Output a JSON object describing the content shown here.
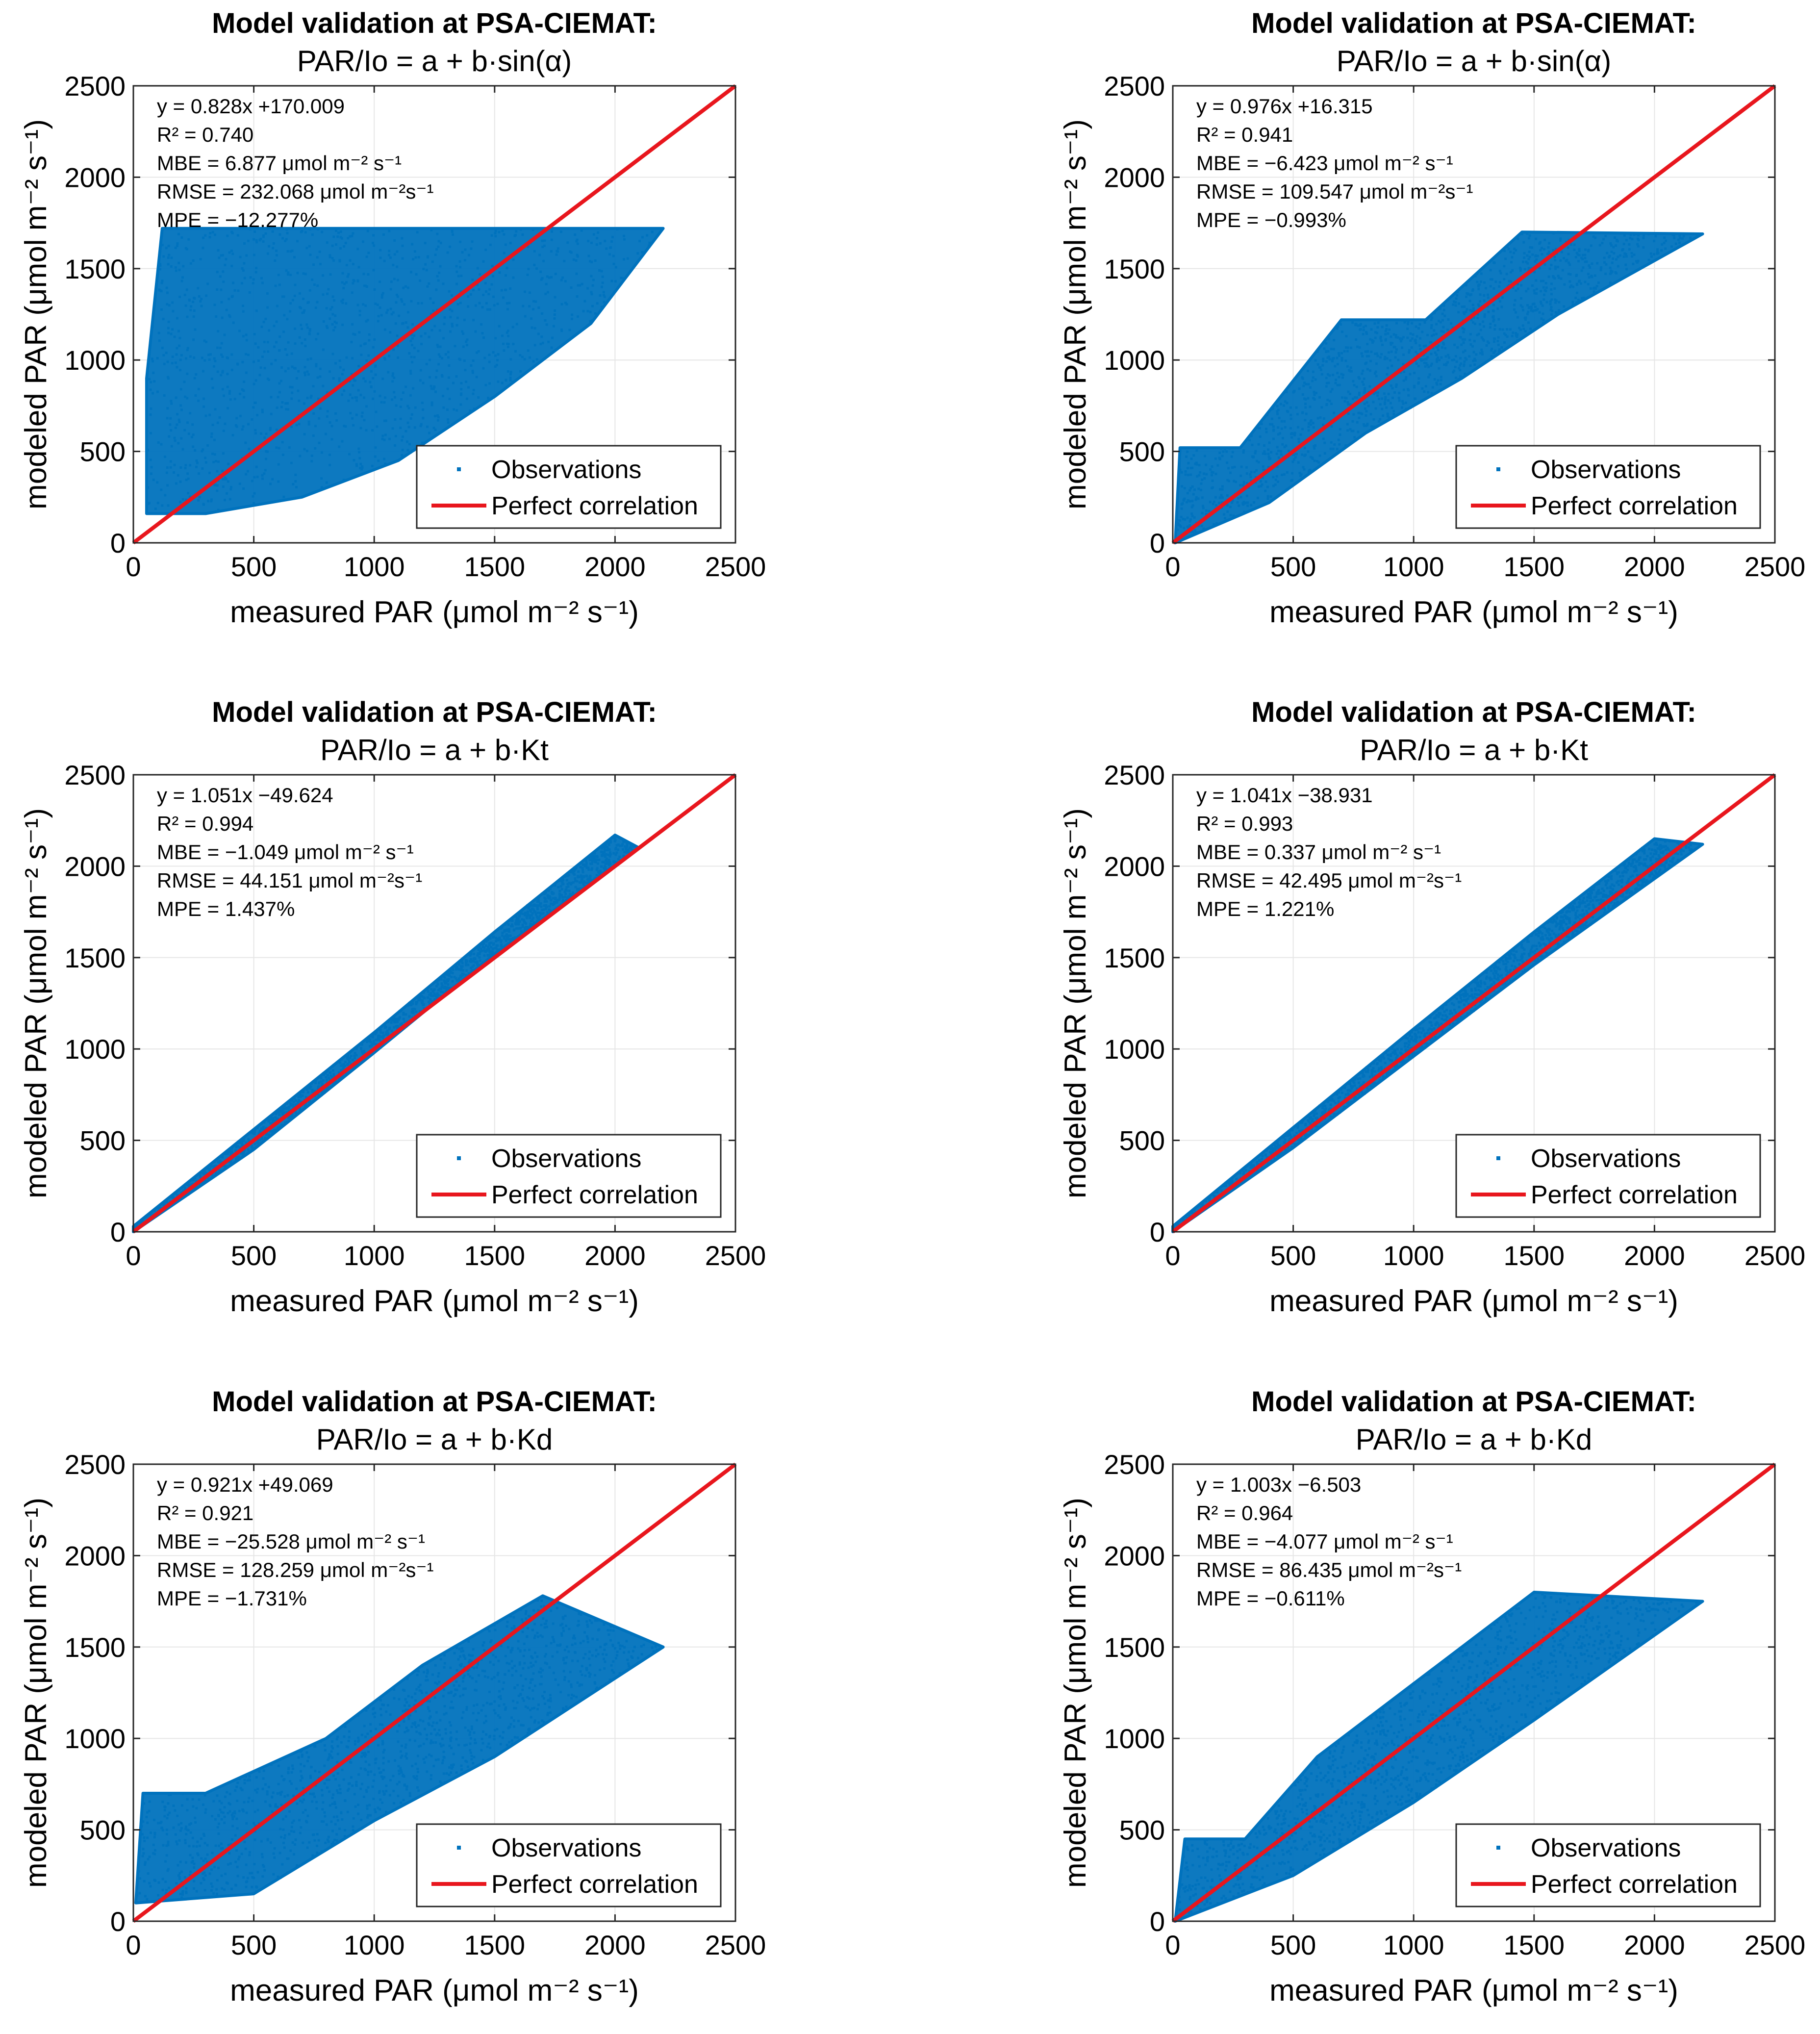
{
  "figure": {
    "rows": 3,
    "cols": 2
  },
  "styles": {
    "point_color": "#0072BD",
    "line_color": "#E8161D",
    "grid_color": "#E6E6E6",
    "axis_color": "#262626"
  },
  "chart_data": [
    {
      "type": "scatter",
      "title": "Model validation at PSA-CIEMAT:",
      "subtitle": "PAR/Io = a + b·sin(α)",
      "xlabel": "measured PAR (μmol m⁻² s⁻¹)",
      "ylabel": "modeled PAR (μmol m⁻² s⁻¹)",
      "xlim": [
        0,
        2500
      ],
      "ylim": [
        0,
        2500
      ],
      "xticks": [
        0,
        500,
        1000,
        1500,
        2000,
        2500
      ],
      "yticks": [
        0,
        500,
        1000,
        1500,
        2000,
        2500
      ],
      "grid": true,
      "legend": {
        "position": "bottom-right",
        "entries": [
          "Observations",
          "Perfect correlation"
        ]
      },
      "stats": [
        "y = 0.828x +170.009",
        "R² = 0.740",
        "MBE = 6.877 μmol m⁻² s⁻¹",
        "RMSE = 232.068 μmol m⁻²s⁻¹",
        "MPE = −12.277%"
      ],
      "series": [
        {
          "name": "Observations",
          "cloud_outline": [
            [
              55,
              160
            ],
            [
              300,
              160
            ],
            [
              700,
              250
            ],
            [
              1100,
              450
            ],
            [
              1500,
              800
            ],
            [
              1900,
              1200
            ],
            [
              2200,
              1720
            ],
            [
              1000,
              1720
            ],
            [
              120,
              1720
            ],
            [
              55,
              900
            ],
            [
              55,
              160
            ]
          ],
          "extent_x": [
            55,
            2200
          ],
          "extent_y": [
            160,
            1720
          ]
        },
        {
          "name": "Perfect correlation",
          "x": [
            0,
            2500
          ],
          "y": [
            0,
            2500
          ]
        }
      ]
    },
    {
      "type": "scatter",
      "title": "Model validation at PSA-CIEMAT:",
      "subtitle": "PAR/Io = a + b·sin(α)",
      "xlabel": "measured PAR (μmol m⁻² s⁻¹)",
      "ylabel": "modeled PAR (μmol m⁻² s⁻¹)",
      "xlim": [
        0,
        2500
      ],
      "ylim": [
        0,
        2500
      ],
      "xticks": [
        0,
        500,
        1000,
        1500,
        2000,
        2500
      ],
      "yticks": [
        0,
        500,
        1000,
        1500,
        2000,
        2500
      ],
      "grid": true,
      "legend": {
        "position": "bottom-right",
        "entries": [
          "Observations",
          "Perfect correlation"
        ]
      },
      "stats": [
        "y = 0.976x +16.315",
        "R² = 0.941",
        "MBE = −6.423 μmol m⁻² s⁻¹",
        "RMSE = 109.547 μmol m⁻²s⁻¹",
        "MPE = −0.993%"
      ],
      "series": [
        {
          "name": "Observations",
          "cloud_outline": [
            [
              10,
              0
            ],
            [
              400,
              220
            ],
            [
              800,
              600
            ],
            [
              1200,
              900
            ],
            [
              1600,
              1250
            ],
            [
              2200,
              1690
            ],
            [
              1450,
              1700
            ],
            [
              1050,
              1220
            ],
            [
              700,
              1220
            ],
            [
              280,
              520
            ],
            [
              30,
              520
            ],
            [
              10,
              0
            ]
          ],
          "extent_x": [
            10,
            2200
          ],
          "extent_y": [
            0,
            1700
          ]
        },
        {
          "name": "Perfect correlation",
          "x": [
            0,
            2500
          ],
          "y": [
            0,
            2500
          ]
        }
      ]
    },
    {
      "type": "scatter",
      "title": "Model validation at PSA-CIEMAT:",
      "subtitle": "PAR/Io = a + b·Kt",
      "xlabel": "measured PAR (μmol m⁻² s⁻¹)",
      "ylabel": "modeled PAR (μmol m⁻² s⁻¹)",
      "xlim": [
        0,
        2500
      ],
      "ylim": [
        0,
        2500
      ],
      "xticks": [
        0,
        500,
        1000,
        1500,
        2000,
        2500
      ],
      "yticks": [
        0,
        500,
        1000,
        1500,
        2000,
        2500
      ],
      "grid": true,
      "legend": {
        "position": "bottom-right",
        "entries": [
          "Observations",
          "Perfect correlation"
        ]
      },
      "stats": [
        "y = 1.051x −49.624",
        "R² = 0.994",
        "MBE = −1.049 μmol m⁻² s⁻¹",
        "RMSE = 44.151 μmol m⁻²s⁻¹",
        "MPE = 1.437%"
      ],
      "series": [
        {
          "name": "Observations",
          "cloud_outline": [
            [
              0,
              0
            ],
            [
              500,
              450
            ],
            [
              1000,
              980
            ],
            [
              1500,
              1520
            ],
            [
              2100,
              2100
            ],
            [
              2000,
              2170
            ],
            [
              1500,
              1640
            ],
            [
              1000,
              1090
            ],
            [
              500,
              560
            ],
            [
              0,
              30
            ],
            [
              0,
              0
            ]
          ],
          "extent_x": [
            0,
            2200
          ],
          "extent_y": [
            0,
            2200
          ]
        },
        {
          "name": "Perfect correlation",
          "x": [
            0,
            2500
          ],
          "y": [
            0,
            2500
          ]
        }
      ]
    },
    {
      "type": "scatter",
      "title": "Model validation at PSA-CIEMAT:",
      "subtitle": "PAR/Io = a + b·Kt",
      "xlabel": "measured PAR (μmol m⁻² s⁻¹)",
      "ylabel": "modeled PAR (μmol m⁻² s⁻¹)",
      "xlim": [
        0,
        2500
      ],
      "ylim": [
        0,
        2500
      ],
      "xticks": [
        0,
        500,
        1000,
        1500,
        2000,
        2500
      ],
      "yticks": [
        0,
        500,
        1000,
        1500,
        2000,
        2500
      ],
      "grid": true,
      "legend": {
        "position": "bottom-right",
        "entries": [
          "Observations",
          "Perfect correlation"
        ]
      },
      "stats": [
        "y = 1.041x −38.931",
        "R² = 0.993",
        "MBE = 0.337 μmol m⁻² s⁻¹",
        "RMSE = 42.495 μmol m⁻²s⁻¹",
        "MPE = 1.221%"
      ],
      "series": [
        {
          "name": "Observations",
          "cloud_outline": [
            [
              0,
              0
            ],
            [
              500,
              460
            ],
            [
              1000,
              960
            ],
            [
              1500,
              1460
            ],
            [
              2200,
              2120
            ],
            [
              2000,
              2150
            ],
            [
              1500,
              1640
            ],
            [
              1000,
              1110
            ],
            [
              500,
              570
            ],
            [
              0,
              30
            ],
            [
              0,
              0
            ]
          ],
          "extent_x": [
            0,
            2200
          ],
          "extent_y": [
            0,
            2150
          ]
        },
        {
          "name": "Perfect correlation",
          "x": [
            0,
            2500
          ],
          "y": [
            0,
            2500
          ]
        }
      ]
    },
    {
      "type": "scatter",
      "title": "Model validation at PSA-CIEMAT:",
      "subtitle": "PAR/Io = a + b·Kd",
      "xlabel": "measured PAR (μmol m⁻² s⁻¹)",
      "ylabel": "modeled PAR (μmol m⁻² s⁻¹)",
      "xlim": [
        0,
        2500
      ],
      "ylim": [
        0,
        2500
      ],
      "xticks": [
        0,
        500,
        1000,
        1500,
        2000,
        2500
      ],
      "yticks": [
        0,
        500,
        1000,
        1500,
        2000,
        2500
      ],
      "grid": true,
      "legend": {
        "position": "bottom-right",
        "entries": [
          "Observations",
          "Perfect correlation"
        ]
      },
      "stats": [
        "y = 0.921x +49.069",
        "R² = 0.921",
        "MBE = −25.528 μmol m⁻² s⁻¹",
        "RMSE = 128.259 μmol m⁻²s⁻¹",
        "MPE = −1.731%"
      ],
      "series": [
        {
          "name": "Observations",
          "cloud_outline": [
            [
              10,
              100
            ],
            [
              500,
              150
            ],
            [
              1000,
              550
            ],
            [
              1500,
              900
            ],
            [
              2200,
              1500
            ],
            [
              1700,
              1780
            ],
            [
              1200,
              1400
            ],
            [
              800,
              1000
            ],
            [
              300,
              700
            ],
            [
              40,
              700
            ],
            [
              10,
              100
            ]
          ],
          "extent_x": [
            10,
            2200
          ],
          "extent_y": [
            80,
            1780
          ]
        },
        {
          "name": "Perfect correlation",
          "x": [
            0,
            2500
          ],
          "y": [
            0,
            2500
          ]
        }
      ]
    },
    {
      "type": "scatter",
      "title": "Model validation at PSA-CIEMAT:",
      "subtitle": "PAR/Io = a + b·Kd",
      "xlabel": "measured PAR (μmol m⁻² s⁻¹)",
      "ylabel": "modeled PAR (μmol m⁻² s⁻¹)",
      "xlim": [
        0,
        2500
      ],
      "ylim": [
        0,
        2500
      ],
      "xticks": [
        0,
        500,
        1000,
        1500,
        2000,
        2500
      ],
      "yticks": [
        0,
        500,
        1000,
        1500,
        2000,
        2500
      ],
      "grid": true,
      "legend": {
        "position": "bottom-right",
        "entries": [
          "Observations",
          "Perfect correlation"
        ]
      },
      "stats": [
        "y = 1.003x −6.503",
        "R² = 0.964",
        "MBE = −4.077 μmol m⁻² s⁻¹",
        "RMSE = 86.435 μmol m⁻²s⁻¹",
        "MPE = −0.611%"
      ],
      "series": [
        {
          "name": "Observations",
          "cloud_outline": [
            [
              10,
              0
            ],
            [
              500,
              250
            ],
            [
              1000,
              650
            ],
            [
              1500,
              1100
            ],
            [
              2200,
              1750
            ],
            [
              1500,
              1800
            ],
            [
              1000,
              1300
            ],
            [
              600,
              900
            ],
            [
              300,
              450
            ],
            [
              50,
              450
            ],
            [
              10,
              0
            ]
          ],
          "extent_x": [
            10,
            2200
          ],
          "extent_y": [
            0,
            1800
          ]
        },
        {
          "name": "Perfect correlation",
          "x": [
            0,
            2500
          ],
          "y": [
            0,
            2500
          ]
        }
      ]
    }
  ]
}
